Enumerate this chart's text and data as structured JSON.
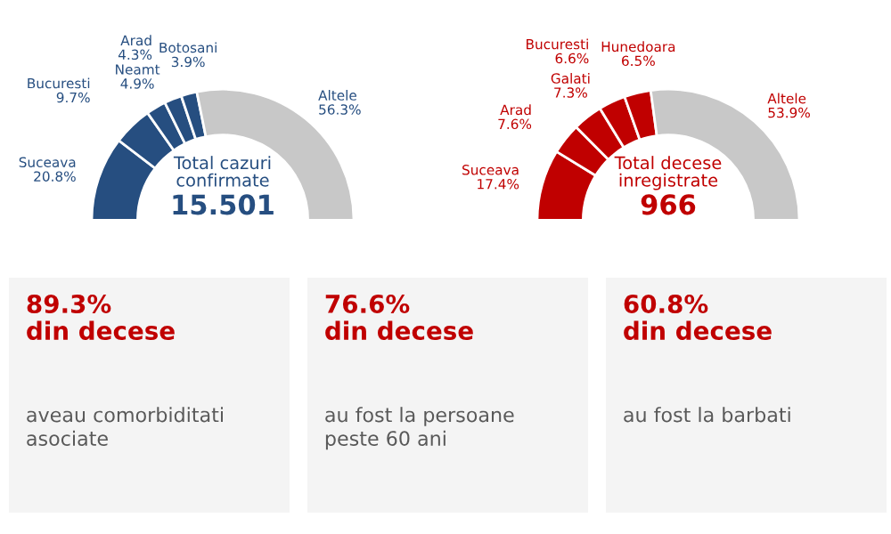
{
  "chart_data": [
    {
      "type": "donut",
      "categories": [
        "Suceava",
        "Bucuresti",
        "Neamt",
        "Arad",
        "Botosani",
        "Altele"
      ],
      "values": [
        20.8,
        9.7,
        4.9,
        4.3,
        3.9,
        56.3
      ],
      "value_labels": [
        "20.8%",
        "9.7%",
        "4.9%",
        "4.3%",
        "3.9%",
        "56.3%"
      ],
      "colors": [
        "#264e80",
        "#264e80",
        "#264e80",
        "#264e80",
        "#264e80",
        "#c8c8c8"
      ],
      "annotations": [
        "Total cazuri\nconfirmate",
        "15.501"
      ]
    },
    {
      "type": "donut",
      "categories": [
        "Suceava",
        "Arad",
        "Galati",
        "Bucuresti",
        "Hunedoara",
        "Altele"
      ],
      "values": [
        17.4,
        7.6,
        7.3,
        6.6,
        6.5,
        53.9
      ],
      "value_labels": [
        "17.4%",
        "7.6%",
        "7.3%",
        "6.6%",
        "6.5%",
        "53.9%"
      ],
      "colors": [
        "#c00000",
        "#c00000",
        "#c00000",
        "#c00000",
        "#c00000",
        "#c8c8c8"
      ],
      "annotations": [
        "Total decese\ninregistrate",
        "966"
      ]
    },
    {
      "type": "other",
      "title": "89.3%\ndin decese",
      "subtitle": "aveau comorbiditati\nasociate"
    },
    {
      "type": "other",
      "title": "76.6%\ndin decese",
      "subtitle": "au fost la persoane\npeste 60 ani"
    },
    {
      "type": "other",
      "title": "60.8%\ndin decese",
      "subtitle": "au fost la barbati"
    }
  ]
}
